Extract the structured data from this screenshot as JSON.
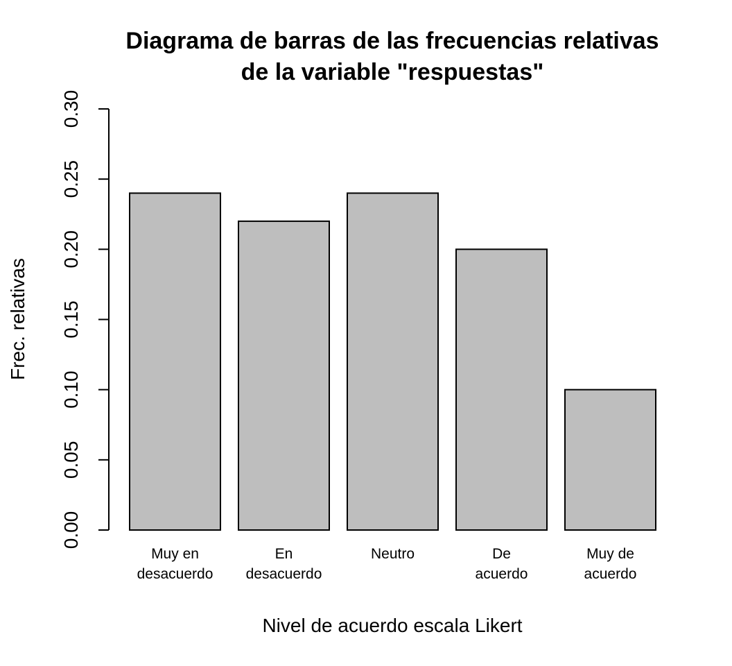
{
  "chart_data": {
    "type": "bar",
    "title": "Diagrama de barras de las frecuencias relativas de la variable \"respuestas\"",
    "title_lines": [
      "Diagrama de barras de las frecuencias relativas",
      "de la variable \"respuestas\""
    ],
    "xlabel": "Nivel de acuerdo escala Likert",
    "ylabel": "Frec. relativas",
    "categories": [
      "Muy en desacuerdo",
      "En desacuerdo",
      "Neutro",
      "De acuerdo",
      "Muy de acuerdo"
    ],
    "category_label_lines": [
      [
        "Muy en",
        "desacuerdo"
      ],
      [
        "En",
        "desacuerdo"
      ],
      [
        "Neutro"
      ],
      [
        "De",
        "acuerdo"
      ],
      [
        "Muy de",
        "acuerdo"
      ]
    ],
    "values": [
      0.24,
      0.22,
      0.24,
      0.2,
      0.1
    ],
    "ylim": [
      0,
      0.3
    ],
    "yticks": [
      0.0,
      0.05,
      0.1,
      0.15,
      0.2,
      0.25,
      0.3
    ],
    "ytick_labels": [
      "0.00",
      "0.05",
      "0.10",
      "0.15",
      "0.20",
      "0.25",
      "0.30"
    ],
    "grid": false,
    "bar_fill": "#bebebe",
    "bar_stroke": "#000000"
  }
}
